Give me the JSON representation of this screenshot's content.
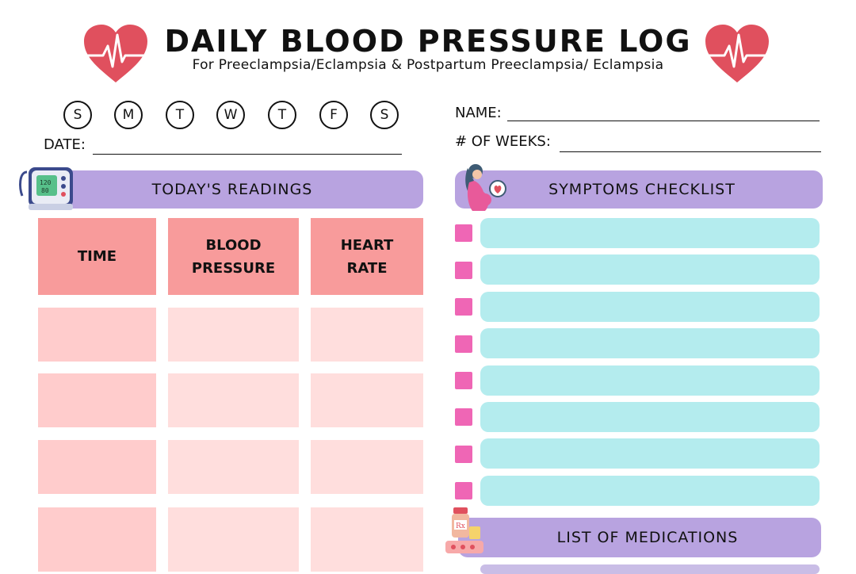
{
  "header": {
    "title": "DAILY BLOOD PRESSURE LOG",
    "subtitle": "For Preeclampsia/Eclampsia & Postpartum Preeclampsia/ Eclampsia",
    "heart_color": "#e0505e"
  },
  "days": [
    "S",
    "M",
    "T",
    "W",
    "T",
    "F",
    "S"
  ],
  "fields": {
    "date_label": "DATE:",
    "name_label": "NAME:",
    "weeks_label": "# OF WEEKS:"
  },
  "readings": {
    "banner": "TODAY'S READINGS",
    "columns": [
      {
        "line1": "TIME",
        "line2": ""
      },
      {
        "line1": "BLOOD",
        "line2": "PRESSURE"
      },
      {
        "line1": "HEART",
        "line2": "RATE"
      }
    ],
    "rows": [
      [
        "",
        "",
        ""
      ],
      [
        "",
        "",
        ""
      ],
      [
        "",
        "",
        ""
      ],
      [
        "",
        "",
        ""
      ]
    ]
  },
  "symptoms": {
    "banner": "SYMPTOMS CHECKLIST",
    "items": [
      "",
      "",
      "",
      "",
      "",
      "",
      "",
      ""
    ]
  },
  "medications": {
    "banner": "LIST OF MEDICATIONS"
  },
  "colors": {
    "banner": "#b8a3e0",
    "header_cell": "#f89b9b",
    "cell": "#ffdedd",
    "checkbox": "#ef66b5",
    "row": "#b4ecee"
  }
}
